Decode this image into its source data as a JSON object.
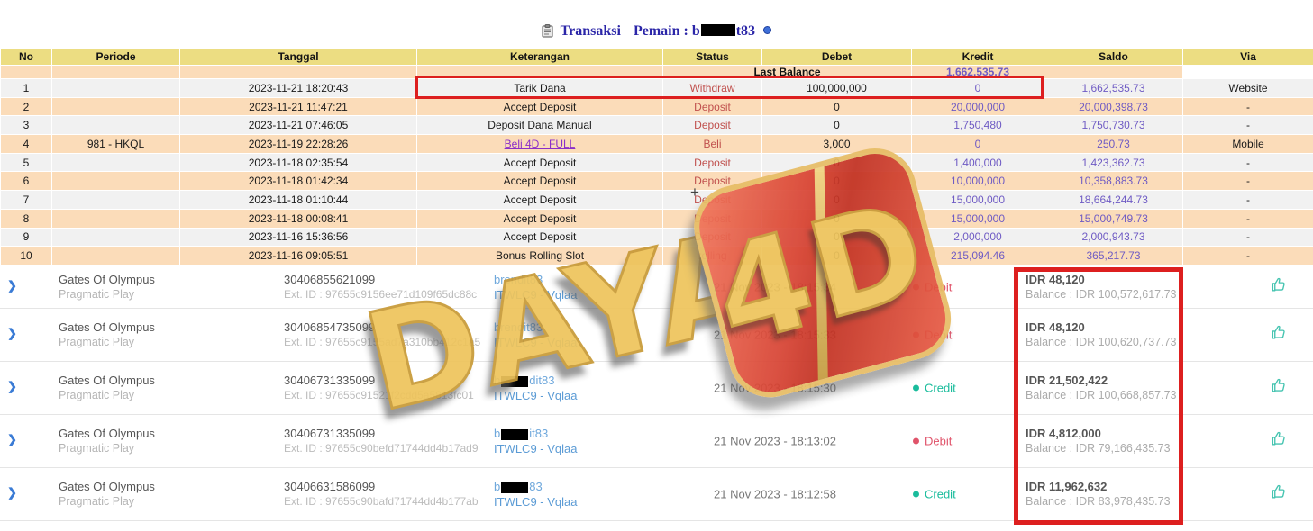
{
  "title": {
    "label": "Transaksi",
    "player_label": "Pemain :",
    "user_prefix": "b",
    "user_suffix": "t83",
    "icon": "clipboard-icon",
    "info_icon": "info-dot-icon"
  },
  "colors": {
    "header_bg": "#ecdd82",
    "row_peach": "#fbdcb9",
    "row_light": "#f1f1f1",
    "status_red": "#c0504d",
    "number_purple": "#6f5bc4",
    "link_purple": "#8b2fc9",
    "annotation_red": "#dd1f1f",
    "debit_red": "#e0536a",
    "credit_teal": "#1abc9c",
    "username_blue": "#5b9bd5",
    "chevron_blue": "#3a7bd5"
  },
  "table": {
    "headers": [
      "No",
      "Periode",
      "Tanggal",
      "Keterangan",
      "Status",
      "Debet",
      "Kredit",
      "Saldo",
      "Via"
    ],
    "last_balance": {
      "label": "Last Balance",
      "value": "1,662,535.73"
    },
    "rows": [
      {
        "no": "1",
        "periode": "",
        "tanggal": "2023-11-21 18:20:43",
        "keterangan": "Tarik Dana",
        "link": false,
        "status": "Withdraw",
        "debet": "100,000,000",
        "kredit": "0",
        "saldo": "1,662,535.73",
        "via": "Website"
      },
      {
        "no": "2",
        "periode": "",
        "tanggal": "2023-11-21 11:47:21",
        "keterangan": "Accept Deposit",
        "link": false,
        "status": "Deposit",
        "debet": "0",
        "kredit": "20,000,000",
        "saldo": "20,000,398.73",
        "via": "-"
      },
      {
        "no": "3",
        "periode": "",
        "tanggal": "2023-11-21 07:46:05",
        "keterangan": "Deposit Dana Manual",
        "link": false,
        "status": "Deposit",
        "debet": "0",
        "kredit": "1,750,480",
        "saldo": "1,750,730.73",
        "via": "-"
      },
      {
        "no": "4",
        "periode": "981 - HKQL",
        "tanggal": "2023-11-19 22:28:26",
        "keterangan": "Beli 4D - FULL",
        "link": true,
        "status": "Beli",
        "debet": "3,000",
        "kredit": "0",
        "saldo": "250.73",
        "via": "Mobile"
      },
      {
        "no": "5",
        "periode": "",
        "tanggal": "2023-11-18 02:35:54",
        "keterangan": "Accept Deposit",
        "link": false,
        "status": "Deposit",
        "debet": "0",
        "kredit": "1,400,000",
        "saldo": "1,423,362.73",
        "via": "-"
      },
      {
        "no": "6",
        "periode": "",
        "tanggal": "2023-11-18 01:42:34",
        "keterangan": "Accept Deposit",
        "link": false,
        "status": "Deposit",
        "debet": "0",
        "kredit": "10,000,000",
        "saldo": "10,358,883.73",
        "via": "-"
      },
      {
        "no": "7",
        "periode": "",
        "tanggal": "2023-11-18 01:10:44",
        "keterangan": "Accept Deposit",
        "link": false,
        "status": "Deposit",
        "debet": "0",
        "kredit": "15,000,000",
        "saldo": "18,664,244.73",
        "via": "-"
      },
      {
        "no": "8",
        "periode": "",
        "tanggal": "2023-11-18 00:08:41",
        "keterangan": "Accept Deposit",
        "link": false,
        "status": "Deposit",
        "debet": "0",
        "kredit": "15,000,000",
        "saldo": "15,000,749.73",
        "via": "-"
      },
      {
        "no": "9",
        "periode": "",
        "tanggal": "2023-11-16 15:36:56",
        "keterangan": "Accept Deposit",
        "link": false,
        "status": "Deposit",
        "debet": "0",
        "kredit": "2,000,000",
        "saldo": "2,000,943.73",
        "via": "-"
      },
      {
        "no": "10",
        "periode": "",
        "tanggal": "2023-11-16 09:05:51",
        "keterangan": "Bonus Rolling Slot",
        "link": false,
        "status": "rolling",
        "debet": "0",
        "kredit": "215,094.46",
        "saldo": "365,217.73",
        "via": "-"
      }
    ]
  },
  "games": [
    {
      "game": "Gates Of Olympus",
      "provider": "Pragmatic Play",
      "txn_id": "30406855621099",
      "ext_id": "Ext. ID : 97655c9156ee71d109f65dc88c",
      "user_prefix": "brendit83",
      "user_suffix": "",
      "redacted": false,
      "room": "ITWLC9 - Vqlaa",
      "datetime": "21 Nov 2023 - 18:15:34",
      "type": "Debit",
      "amount": "IDR 48,120",
      "balance": "Balance : IDR 100,572,617.73"
    },
    {
      "game": "Gates Of Olympus",
      "provider": "Pragmatic Play",
      "txn_id": "30406854735099",
      "ext_id": "Ext. ID : 97655c9155ad7a310bb412c1a5",
      "user_prefix": "brendit83",
      "user_suffix": "",
      "redacted": false,
      "room": "ITWLC9 - Vqlaa",
      "datetime": "21 Nov 2023 - 18:15:33",
      "type": "Debit",
      "amount": "IDR 48,120",
      "balance": "Balance : IDR 100,620,737.73"
    },
    {
      "game": "Gates Of Olympus",
      "provider": "Pragmatic Play",
      "txn_id": "30406731335099",
      "ext_id": "Ext. ID : 97655c91521f2cdd5a5813fc01",
      "user_prefix": "b",
      "user_suffix": "dit83",
      "redacted": true,
      "room": "ITWLC9 - Vqlaa",
      "datetime": "21 Nov 2023 - 18:15:30",
      "type": "Credit",
      "amount": "IDR 21,502,422",
      "balance": "Balance : IDR 100,668,857.73"
    },
    {
      "game": "Gates Of Olympus",
      "provider": "Pragmatic Play",
      "txn_id": "30406731335099",
      "ext_id": "Ext. ID : 97655c90befd71744dd4b17ad9",
      "user_prefix": "b",
      "user_suffix": "it83",
      "redacted": true,
      "room": "ITWLC9 - Vqlaa",
      "datetime": "21 Nov 2023 - 18:13:02",
      "type": "Debit",
      "amount": "IDR 4,812,000",
      "balance": "Balance : IDR 79,166,435.73"
    },
    {
      "game": "Gates Of Olympus",
      "provider": "Pragmatic Play",
      "txn_id": "30406631586099",
      "ext_id": "Ext. ID : 97655c90bafd71744dd4b177ab",
      "user_prefix": "b",
      "user_suffix": "83",
      "redacted": true,
      "room": "ITWLC9 - Vqlaa",
      "datetime": "21 Nov 2023 - 18:12:58",
      "type": "Credit",
      "amount": "IDR 11,962,632",
      "balance": "Balance : IDR 83,978,435.73"
    }
  ],
  "watermark": {
    "text": "DAYA",
    "badge": "4D"
  },
  "cursor_glyph": "+"
}
